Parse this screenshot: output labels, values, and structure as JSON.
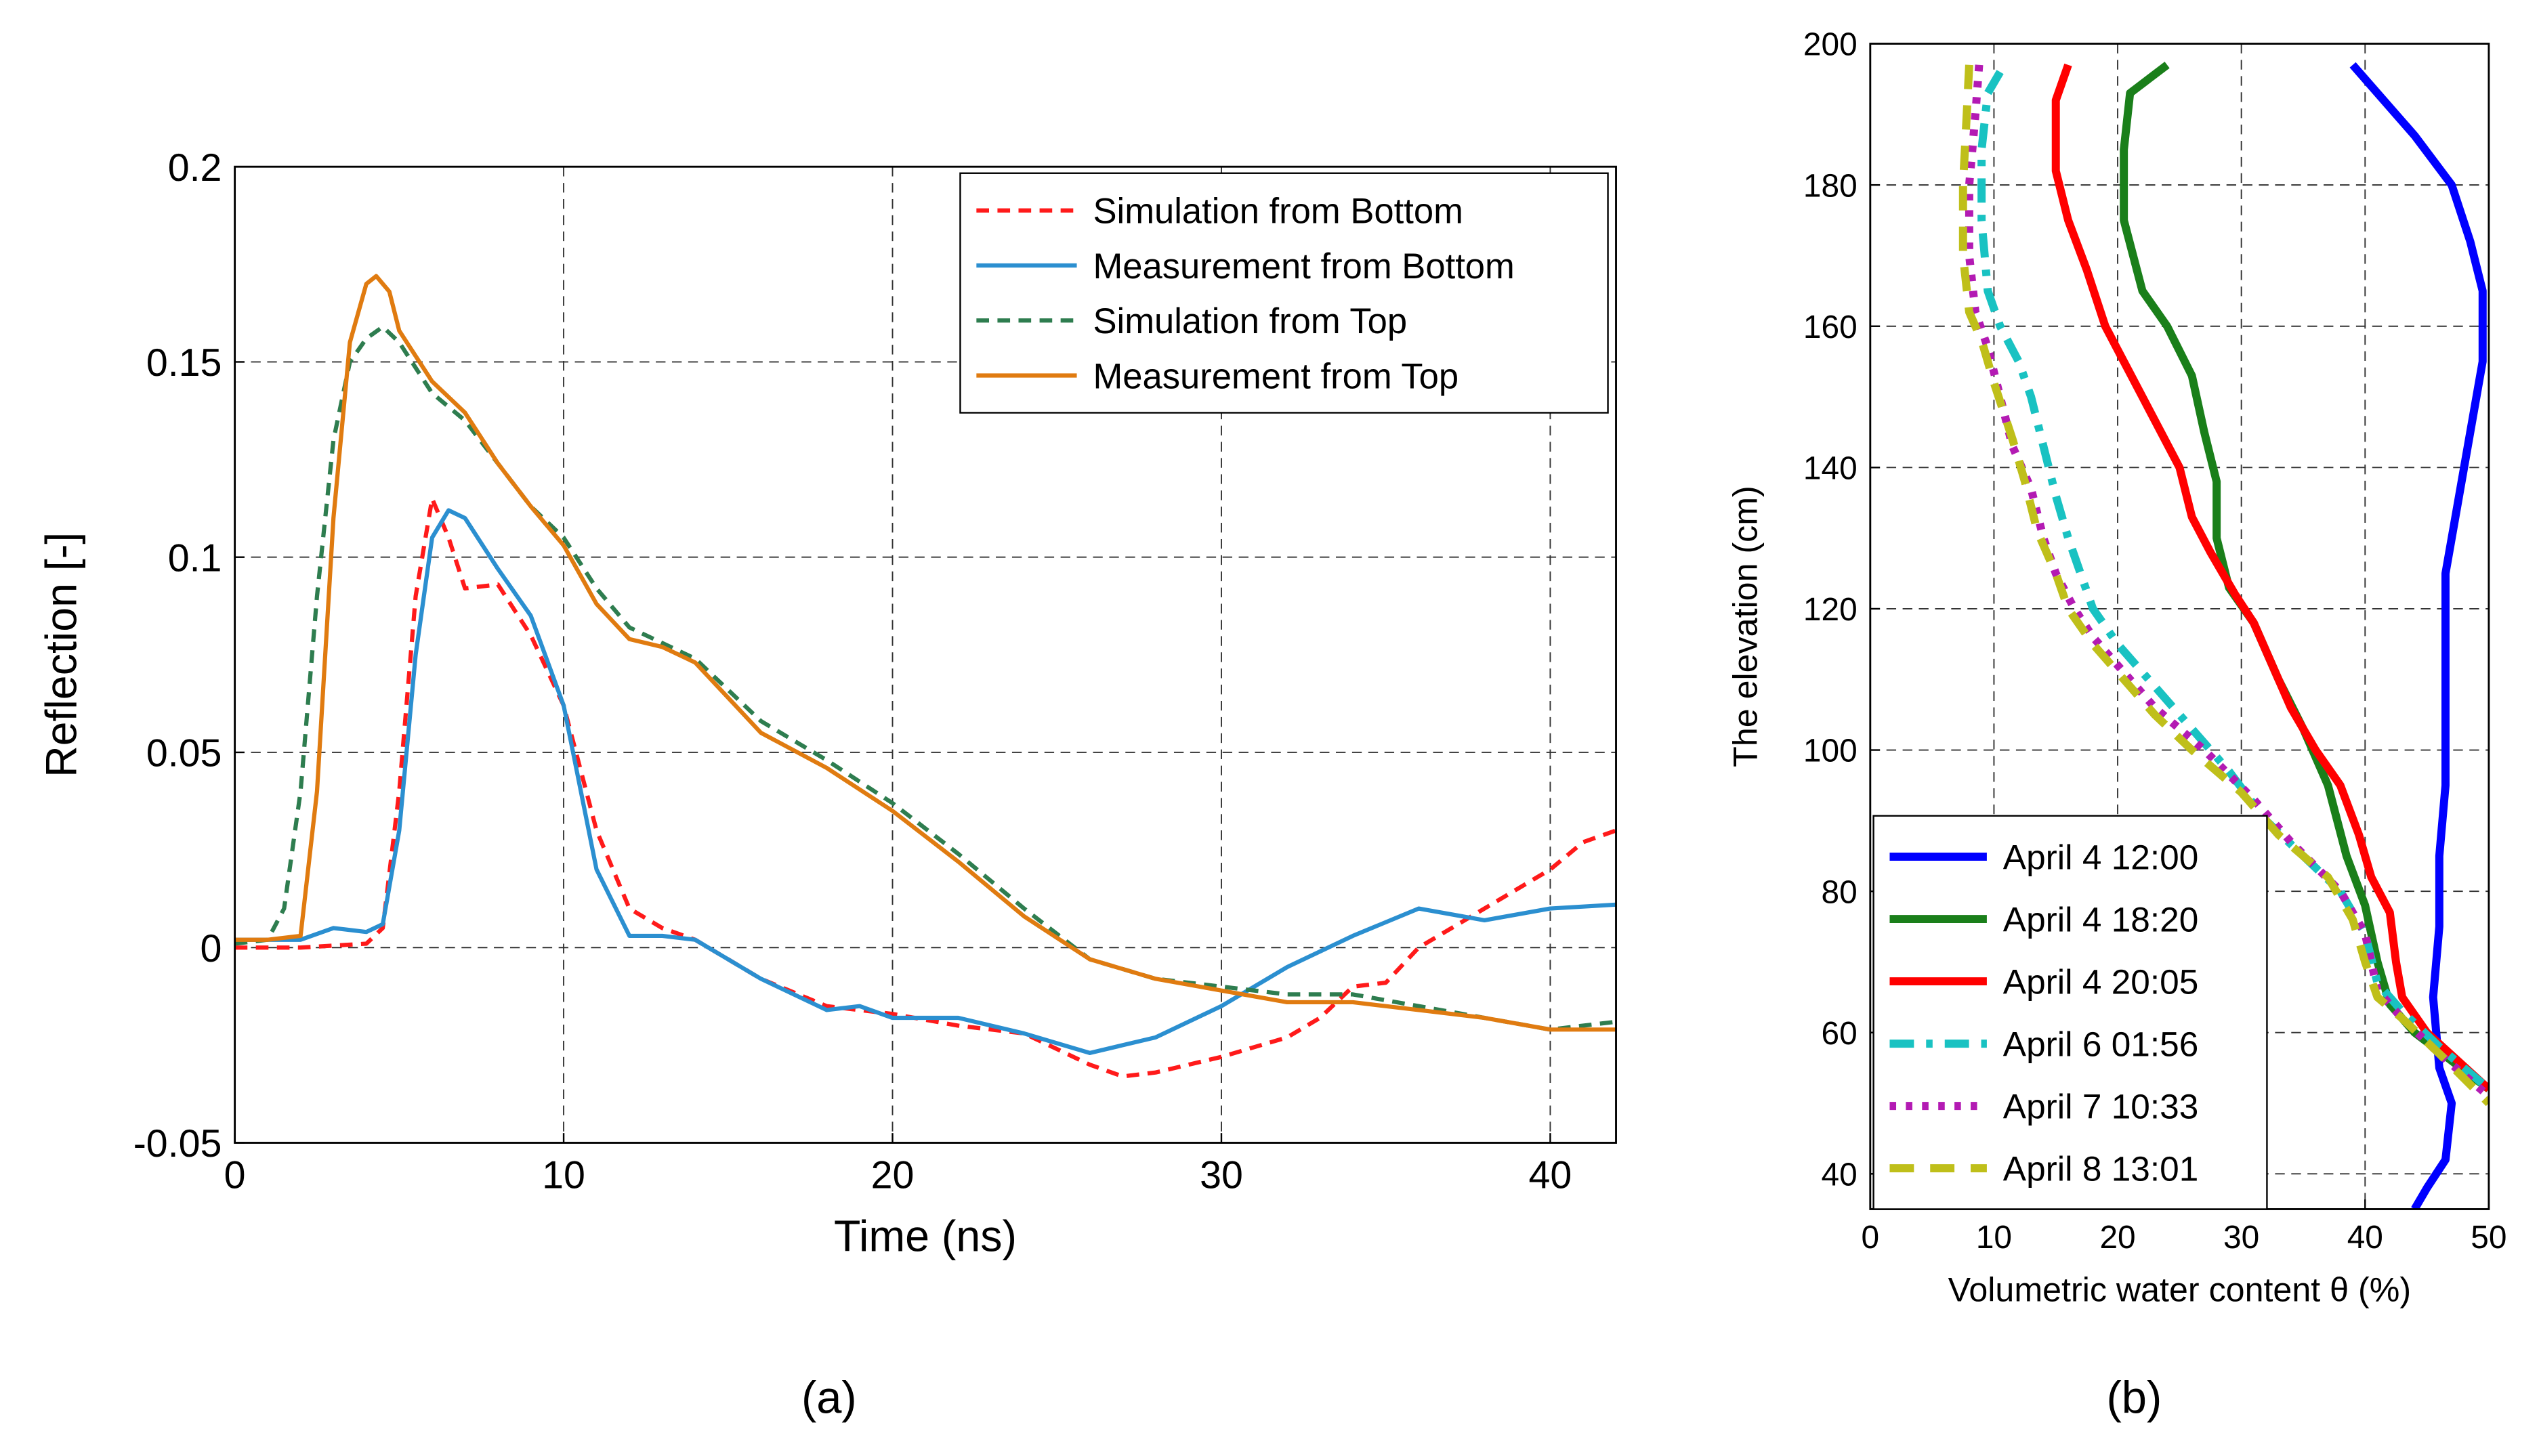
{
  "chart_data": [
    {
      "type": "line",
      "caption": "(a)",
      "xlabel": "Time (ns)",
      "ylabel": "Reflection [-]",
      "xlim": [
        0,
        42
      ],
      "ylim": [
        -0.05,
        0.2
      ],
      "xticks": [
        0,
        10,
        20,
        30,
        40
      ],
      "yticks": [
        -0.05,
        0,
        0.05,
        0.1,
        0.15,
        0.2
      ],
      "grid": true,
      "legend": "upper right",
      "series": [
        {
          "name": "Simulation from Bottom",
          "color": "#ff1a1a",
          "linestyle": "dashed",
          "x": [
            0,
            2,
            4,
            4.5,
            5,
            5.5,
            6,
            6.5,
            7,
            8,
            9,
            10,
            11,
            12,
            13,
            14,
            16,
            18,
            20,
            22,
            24,
            26,
            27,
            28,
            30,
            32,
            33,
            34,
            35,
            36,
            38,
            40,
            41,
            42
          ],
          "values": [
            0,
            0,
            0.001,
            0.005,
            0.04,
            0.09,
            0.115,
            0.105,
            0.092,
            0.093,
            0.08,
            0.062,
            0.03,
            0.01,
            0.005,
            0.002,
            -0.008,
            -0.015,
            -0.017,
            -0.02,
            -0.022,
            -0.03,
            -0.033,
            -0.032,
            -0.028,
            -0.023,
            -0.018,
            -0.01,
            -0.009,
            0,
            0.01,
            0.02,
            0.027,
            0.03
          ]
        },
        {
          "name": "Measurement from Bottom",
          "color": "#2b8fd0",
          "linestyle": "solid",
          "x": [
            0,
            1,
            2,
            3,
            4,
            4.5,
            5,
            5.5,
            6,
            6.5,
            7,
            8,
            9,
            10,
            11,
            12,
            13,
            14,
            16,
            18,
            19,
            20,
            22,
            24,
            26,
            28,
            30,
            32,
            34,
            36,
            38,
            40,
            42
          ],
          "values": [
            0.002,
            0.002,
            0.002,
            0.005,
            0.004,
            0.006,
            0.03,
            0.075,
            0.105,
            0.112,
            0.11,
            0.097,
            0.085,
            0.062,
            0.02,
            0.003,
            0.003,
            0.002,
            -0.008,
            -0.016,
            -0.015,
            -0.018,
            -0.018,
            -0.022,
            -0.027,
            -0.023,
            -0.015,
            -0.005,
            0.003,
            0.01,
            0.007,
            0.01,
            0.011
          ]
        },
        {
          "name": "Simulation from Top",
          "color": "#2e7d4f",
          "linestyle": "dashed",
          "x": [
            0,
            1,
            1.5,
            2,
            2.5,
            3,
            3.5,
            4,
            4.5,
            5,
            6,
            7,
            8,
            9,
            10,
            11,
            12,
            13,
            14,
            16,
            18,
            20,
            22,
            24,
            26,
            28,
            30,
            32,
            34,
            36,
            38,
            40,
            42
          ],
          "values": [
            0.001,
            0.002,
            0.01,
            0.04,
            0.09,
            0.13,
            0.15,
            0.156,
            0.159,
            0.155,
            0.142,
            0.135,
            0.124,
            0.113,
            0.105,
            0.092,
            0.082,
            0.078,
            0.074,
            0.058,
            0.048,
            0.037,
            0.024,
            0.01,
            -0.003,
            -0.008,
            -0.01,
            -0.012,
            -0.012,
            -0.015,
            -0.018,
            -0.021,
            -0.019
          ]
        },
        {
          "name": "Measurement from Top",
          "color": "#e07b10",
          "linestyle": "solid",
          "x": [
            0,
            1,
            2,
            2.5,
            3,
            3.5,
            4,
            4.3,
            4.7,
            5,
            6,
            7,
            8,
            9,
            10,
            11,
            12,
            13,
            14,
            16,
            18,
            20,
            22,
            24,
            26,
            28,
            30,
            32,
            34,
            36,
            38,
            40,
            42
          ],
          "values": [
            0.002,
            0.002,
            0.003,
            0.04,
            0.11,
            0.155,
            0.17,
            0.172,
            0.168,
            0.158,
            0.145,
            0.137,
            0.124,
            0.113,
            0.103,
            0.088,
            0.079,
            0.077,
            0.073,
            0.055,
            0.046,
            0.035,
            0.022,
            0.008,
            -0.003,
            -0.008,
            -0.011,
            -0.014,
            -0.014,
            -0.016,
            -0.018,
            -0.021,
            -0.021
          ]
        }
      ]
    },
    {
      "type": "line",
      "caption": "(b)",
      "xlabel": "Volumetric water content θ (%)",
      "ylabel": "The elevation (cm)",
      "xlim": [
        0,
        50
      ],
      "ylim": [
        35,
        200
      ],
      "xticks": [
        0,
        10,
        20,
        30,
        40,
        50
      ],
      "yticks": [
        40,
        60,
        80,
        100,
        120,
        140,
        160,
        180,
        200
      ],
      "grid": true,
      "legend": "lower left",
      "series": [
        {
          "name": "April 4 12:00",
          "color": "#0000ff",
          "linestyle": "solid",
          "x": [
            39,
            41,
            44,
            47,
            48.5,
            49.5,
            49.5,
            48.5,
            47.5,
            46.5,
            46.5,
            46.5,
            46,
            46,
            45.5,
            46,
            47,
            46.5,
            45,
            44
          ],
          "values": [
            197,
            193,
            187,
            180,
            172,
            165,
            155,
            145,
            135,
            125,
            110,
            95,
            85,
            75,
            65,
            55,
            50,
            42,
            38,
            35
          ]
        },
        {
          "name": "April 4 18:20",
          "color": "#1a7f1a",
          "linestyle": "solid",
          "x": [
            24,
            21,
            20.5,
            20.5,
            22,
            24,
            26,
            27,
            28,
            28,
            29,
            31,
            33,
            35,
            37,
            38.5,
            40,
            41,
            42,
            44,
            47,
            50
          ],
          "values": [
            197,
            193,
            185,
            175,
            165,
            160,
            153,
            145,
            138,
            130,
            123,
            118,
            110,
            103,
            95,
            85,
            78,
            70,
            64,
            60,
            56,
            52
          ]
        },
        {
          "name": "April 4 20:05",
          "color": "#ff0000",
          "linestyle": "solid",
          "x": [
            16,
            15,
            15,
            16,
            17.5,
            19,
            20.5,
            22,
            23.5,
            25,
            26,
            27.5,
            29.5,
            31,
            32.5,
            34,
            36,
            38,
            39.5,
            40.5,
            42,
            42.5,
            43,
            45,
            47.5,
            50
          ],
          "values": [
            197,
            192,
            182,
            175,
            168,
            160,
            155,
            150,
            145,
            140,
            133,
            128,
            122,
            118,
            112,
            106,
            100,
            95,
            88,
            82,
            77,
            70,
            65,
            60,
            56,
            52
          ]
        },
        {
          "name": "April 6 01:56",
          "color": "#19c2c2",
          "linestyle": "dashdot",
          "x": [
            10.5,
            9.5,
            9,
            9,
            9.5,
            10.5,
            12,
            13,
            14,
            15,
            16,
            17,
            18,
            20,
            23,
            26,
            29,
            32,
            35,
            38,
            40,
            41,
            43,
            46,
            50
          ],
          "values": [
            196,
            193,
            185,
            175,
            165,
            160,
            155,
            150,
            143,
            136,
            130,
            125,
            120,
            115,
            109,
            103,
            97,
            90,
            85,
            80,
            74,
            67,
            63,
            58,
            52
          ]
        },
        {
          "name": "April 7 10:33",
          "color": "#b31ab3",
          "linestyle": "dotted",
          "x": [
            8.8,
            8.5,
            8,
            8,
            8.5,
            9.5,
            10.5,
            11.5,
            13,
            14,
            15,
            16.5,
            18,
            20,
            23,
            27,
            31,
            34,
            38,
            40,
            41,
            43,
            46,
            50
          ],
          "values": [
            197,
            190,
            180,
            170,
            162,
            157,
            150,
            143,
            137,
            130,
            125,
            120,
            116,
            112,
            106,
            100,
            93,
            87,
            80,
            74,
            66,
            62,
            57,
            51
          ]
        },
        {
          "name": "April 8 13:01",
          "color": "#bfbf1a",
          "linestyle": "dashed",
          "x": [
            8,
            7.8,
            7.5,
            7.5,
            8,
            9,
            10,
            11.5,
            12.5,
            13.5,
            15,
            16,
            18,
            20,
            23,
            26,
            30,
            33,
            37,
            39,
            40,
            41,
            43,
            46,
            50
          ],
          "values": [
            197,
            190,
            180,
            170,
            162,
            158,
            152,
            144,
            138,
            131,
            125,
            120,
            115,
            111,
            105,
            100,
            94,
            88,
            82,
            76,
            70,
            65,
            62,
            57,
            50
          ]
        }
      ]
    }
  ]
}
